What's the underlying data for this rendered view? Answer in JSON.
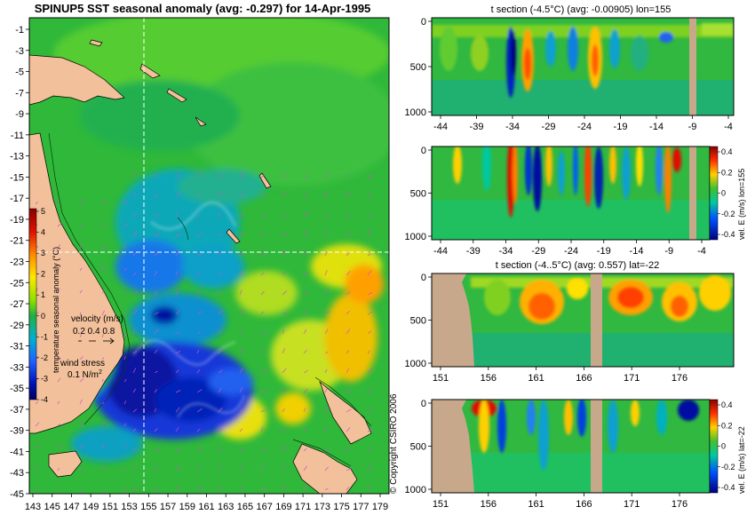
{
  "chart_data": [
    {
      "type": "heatmap",
      "title": "SPINUP5 SST seasonal anomaly (avg: -0.297) for 14-Apr-1995",
      "x_ticks": [
        "143",
        "145",
        "147",
        "149",
        "151",
        "153",
        "155",
        "157",
        "159",
        "161",
        "163",
        "165",
        "167",
        "169",
        "171",
        "173",
        "175",
        "177",
        "179"
      ],
      "y_ticks": [
        "-1",
        "-3",
        "-5",
        "-7",
        "-9",
        "-11",
        "-13",
        "-15",
        "-17",
        "-19",
        "-21",
        "-23",
        "-25",
        "-27",
        "-29",
        "-31",
        "-33",
        "-35",
        "-37",
        "-39",
        "-41",
        "-43",
        "-45"
      ],
      "xlim": [
        142.5,
        180.5
      ],
      "ylim": [
        -45,
        0
      ],
      "colorbar": {
        "label": "temperature seasonal anomaly (°C)",
        "ticks": [
          "5",
          "4",
          "3",
          "2",
          "1",
          "0",
          "-1",
          "-2",
          "-3",
          "-4"
        ],
        "range": [
          -4,
          5
        ]
      },
      "legend": {
        "velocity_label": "velocity (m/s)",
        "velocity_values": "0.2 0.4 0.8",
        "stress_label": "wind stress",
        "stress_value": "0.1 N/m",
        "stress_exp": "2"
      },
      "section_lines": {
        "lon": 155,
        "lat": -22
      }
    },
    {
      "type": "heatmap",
      "title": "t section (-4.5°C) (avg: -0.00905) lon=155",
      "x_ticks": [
        "-44",
        "-39",
        "-34",
        "-29",
        "-24",
        "-19",
        "-14",
        "-9",
        "-4"
      ],
      "y_ticks": [
        "0",
        "500",
        "1000"
      ],
      "ylim": [
        0,
        1050
      ]
    },
    {
      "type": "heatmap",
      "x_ticks": [
        "-44",
        "-39",
        "-34",
        "-29",
        "-24",
        "-19",
        "-14",
        "-9",
        "-4"
      ],
      "y_ticks": [
        "0",
        "500",
        "1000"
      ],
      "colorbar": {
        "label": "vel. E (m/s) lon=155",
        "ticks": [
          "0.4",
          "0.2",
          "0",
          "-0.2",
          "-0.4"
        ],
        "range": [
          -0.4,
          0.4
        ]
      }
    },
    {
      "type": "heatmap",
      "title": "t section (-4..5°C) (avg: 0.557) lat=-22",
      "x_ticks": [
        "151",
        "156",
        "161",
        "166",
        "171",
        "176"
      ],
      "y_ticks": [
        "0",
        "500",
        "1000"
      ]
    },
    {
      "type": "heatmap",
      "x_ticks": [
        "151",
        "156",
        "161",
        "166",
        "171",
        "176"
      ],
      "y_ticks": [
        "0",
        "500",
        "1000"
      ],
      "colorbar": {
        "label": "vel. E (m/s) lat=-22",
        "ticks": [
          "0.4",
          "0.2",
          "0",
          "-0.2",
          "-0.4"
        ],
        "range": [
          -0.4,
          0.4
        ]
      }
    }
  ],
  "copyright": "© Copyright CSIRO 2006",
  "colors": {
    "land": "#f2c09a",
    "section_land": "#c8a88a",
    "ocean_base": "#2fb83a"
  }
}
